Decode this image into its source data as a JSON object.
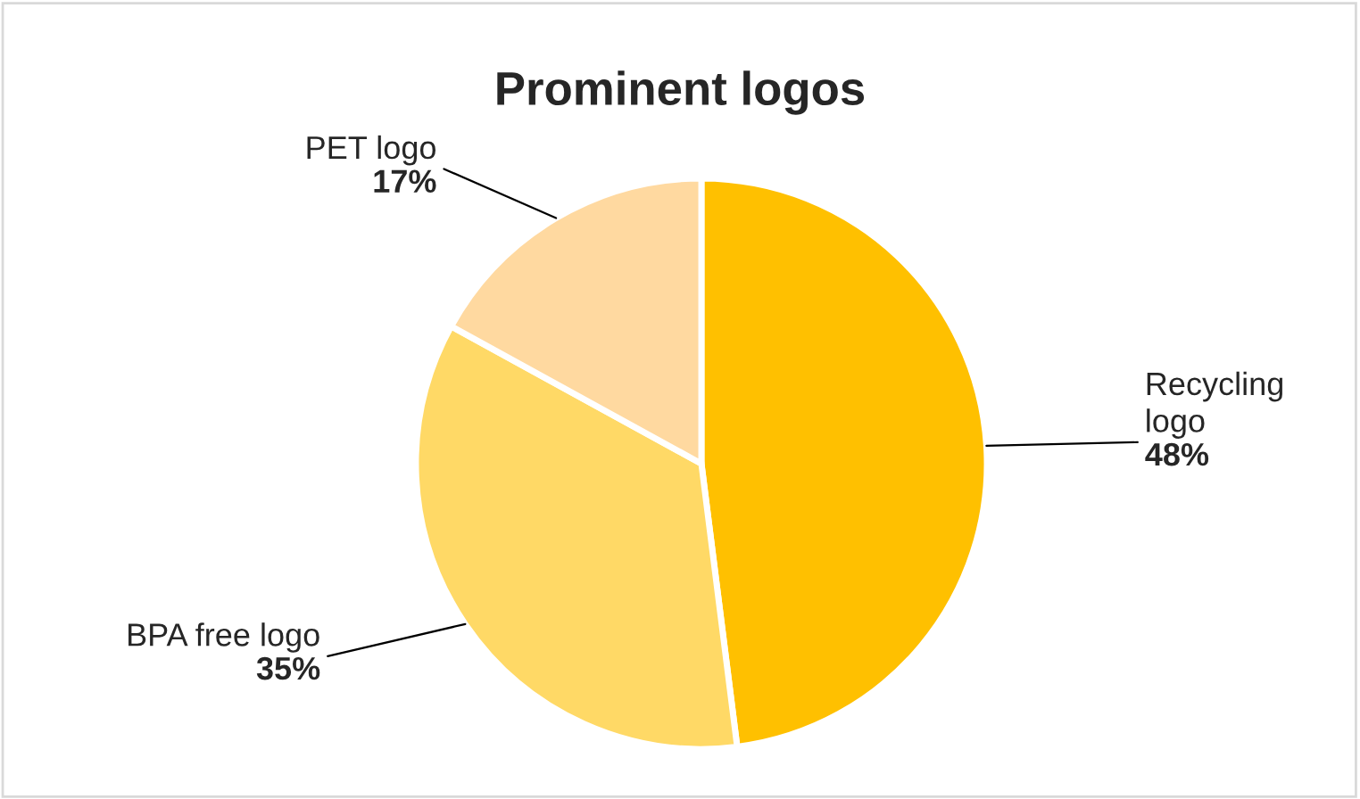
{
  "chart_data": {
    "type": "pie",
    "title": "Prominent logos",
    "categories": [
      "Recycling logo",
      "BPA free logo",
      "PET logo"
    ],
    "values": [
      48,
      35,
      17
    ],
    "colors": [
      "#ffc000",
      "#ffd966",
      "#ffd9a0"
    ],
    "value_labels": [
      "48%",
      "35%",
      "17%"
    ]
  }
}
